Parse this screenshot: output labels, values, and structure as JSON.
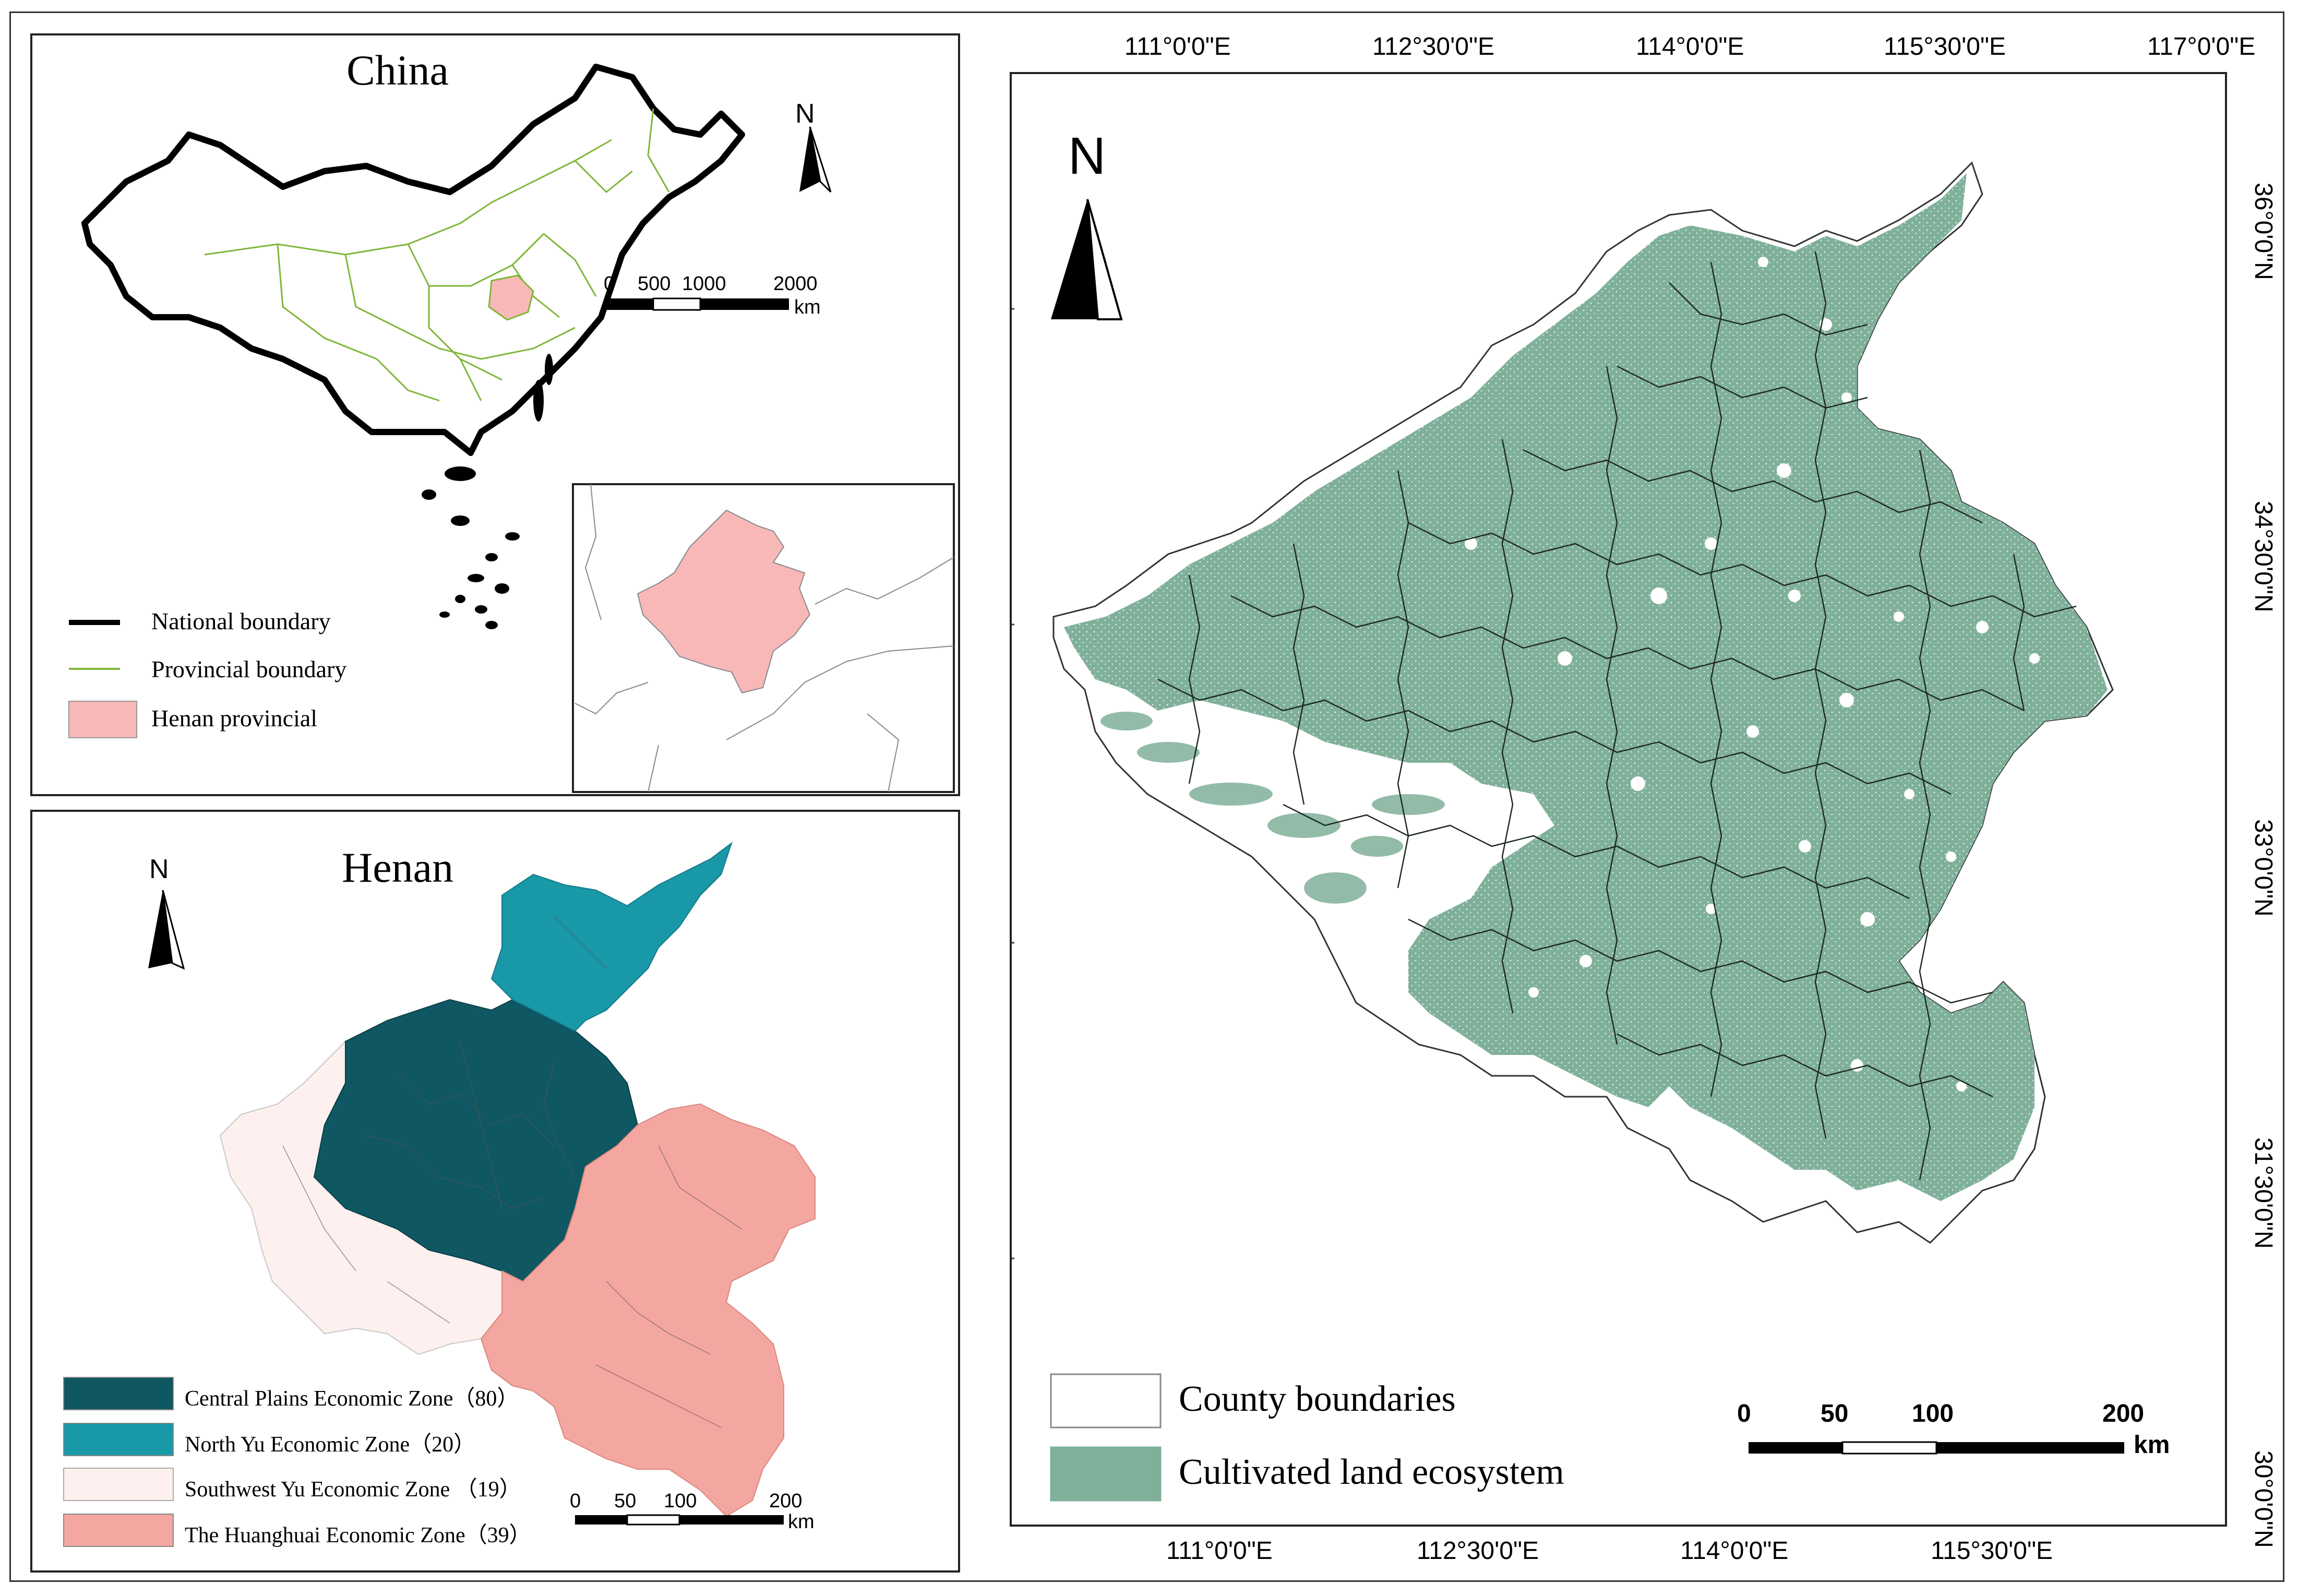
{
  "china_panel": {
    "title": "China",
    "north": "N",
    "scale_ticks": [
      "0",
      "500",
      "1000",
      "2000"
    ],
    "scale_unit": "km",
    "legend": [
      {
        "label": "National boundary",
        "color": "#000000"
      },
      {
        "label": "Provincial boundary",
        "color": "#7fb63a"
      },
      {
        "label": "Henan provincial",
        "color": "#f8b8b8"
      }
    ]
  },
  "henan_panel": {
    "title": "Henan",
    "north": "N",
    "scale_ticks": [
      "0",
      "50",
      "100",
      "200"
    ],
    "scale_unit": "km",
    "legend": [
      {
        "label": "Central Plains Economic Zone（80）",
        "color": "#0f5763"
      },
      {
        "label": "North Yu Economic Zone（20）",
        "color": "#1998a8"
      },
      {
        "label": "Southwest Yu Economic Zone （19）",
        "color": "#fdf0ee"
      },
      {
        "label": "The Huanghuai Economic Zone（39）",
        "color": "#f4a7a0"
      }
    ]
  },
  "main_panel": {
    "north": "N",
    "top_longitudes": [
      "111°0'0\"E",
      "112°30'0\"E",
      "114°0'0\"E",
      "115°30'0\"E",
      "117°0'0\"E"
    ],
    "bottom_longitudes": [
      "111°0'0\"E",
      "112°30'0\"E",
      "114°0'0\"E",
      "115°30'0\"E"
    ],
    "right_latitudes": [
      "36°0'0\"N",
      "34°30'0\"N",
      "33°0'0\"N",
      "31°30'0\"N",
      "30°0'0\"N"
    ],
    "scale_ticks": [
      "0",
      "50",
      "100",
      "200"
    ],
    "scale_unit": "km",
    "legend": [
      {
        "label": "County boundaries",
        "color": "#ffffff"
      },
      {
        "label": "Cultivated land ecosystem",
        "color": "#7fb09a"
      }
    ]
  }
}
